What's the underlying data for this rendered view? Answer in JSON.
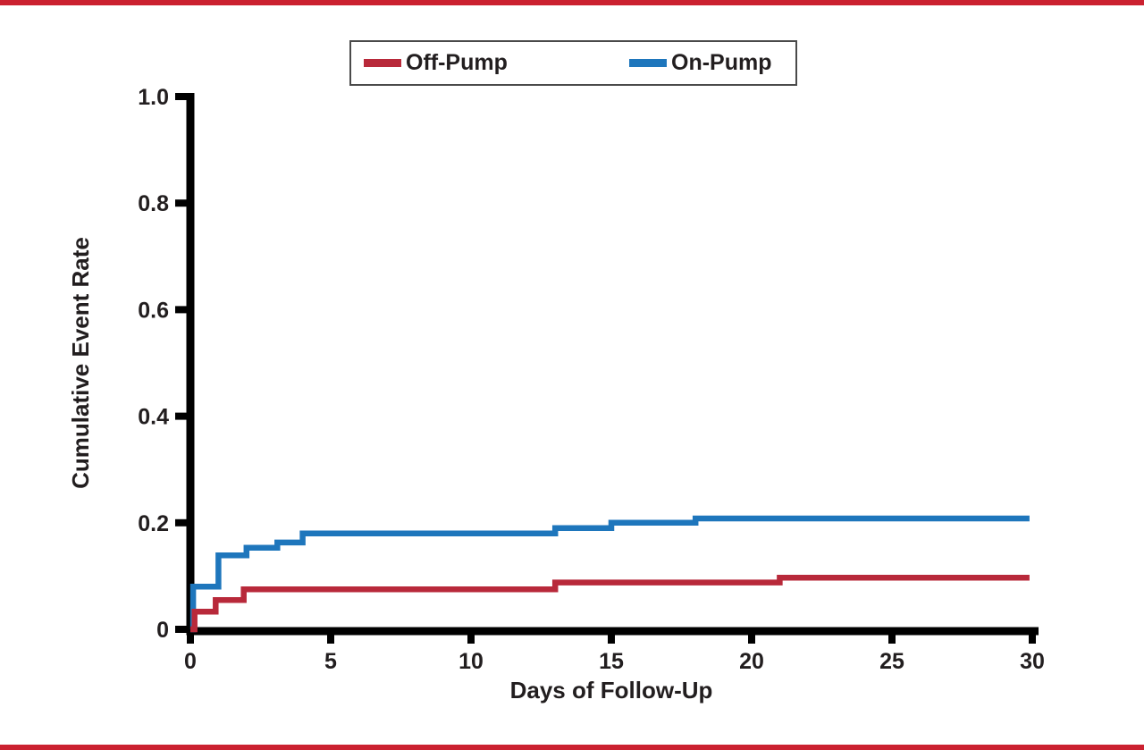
{
  "page": {
    "background": "#ffffff",
    "top_bar_color": "#cb2130",
    "bottom_bar_color": "#cb2130"
  },
  "legend": {
    "items": [
      {
        "label": "Off-Pump",
        "color": "#b8293a"
      },
      {
        "label": "On-Pump",
        "color": "#1e76bc"
      }
    ]
  },
  "chart_data": {
    "type": "line",
    "subtype": "step",
    "title": "",
    "xlabel": "Days of Follow-Up",
    "ylabel": "Cumulative Event Rate",
    "xlim": [
      0,
      30
    ],
    "ylim": [
      0,
      1.0
    ],
    "xticks": [
      0,
      5,
      10,
      15,
      20,
      25,
      30
    ],
    "xtick_labels": [
      "0",
      "5",
      "10",
      "15",
      "20",
      "25",
      "30"
    ],
    "yticks": [
      0,
      0.2,
      0.4,
      0.6,
      0.8,
      1.0
    ],
    "ytick_labels": [
      "0",
      "0.2",
      "0.4",
      "0.6",
      "0.8",
      "1.0"
    ],
    "grid": false,
    "legend_position": "top-center",
    "axis_color": "#000000",
    "series": [
      {
        "name": "On-Pump",
        "color": "#1e76bc",
        "points": [
          [
            0,
            0
          ],
          [
            0.1,
            0.08
          ],
          [
            1,
            0.139
          ],
          [
            2,
            0.153
          ],
          [
            3.1,
            0.163
          ],
          [
            4,
            0.18
          ],
          [
            13,
            0.19
          ],
          [
            15,
            0.2
          ],
          [
            18,
            0.208
          ],
          [
            29.9,
            0.208
          ]
        ]
      },
      {
        "name": "Off-Pump",
        "color": "#b8293a",
        "points": [
          [
            0,
            0
          ],
          [
            0.15,
            0.033
          ],
          [
            0.9,
            0.055
          ],
          [
            1.9,
            0.075
          ],
          [
            13,
            0.088
          ],
          [
            21,
            0.097
          ],
          [
            29.9,
            0.097
          ]
        ]
      }
    ]
  }
}
